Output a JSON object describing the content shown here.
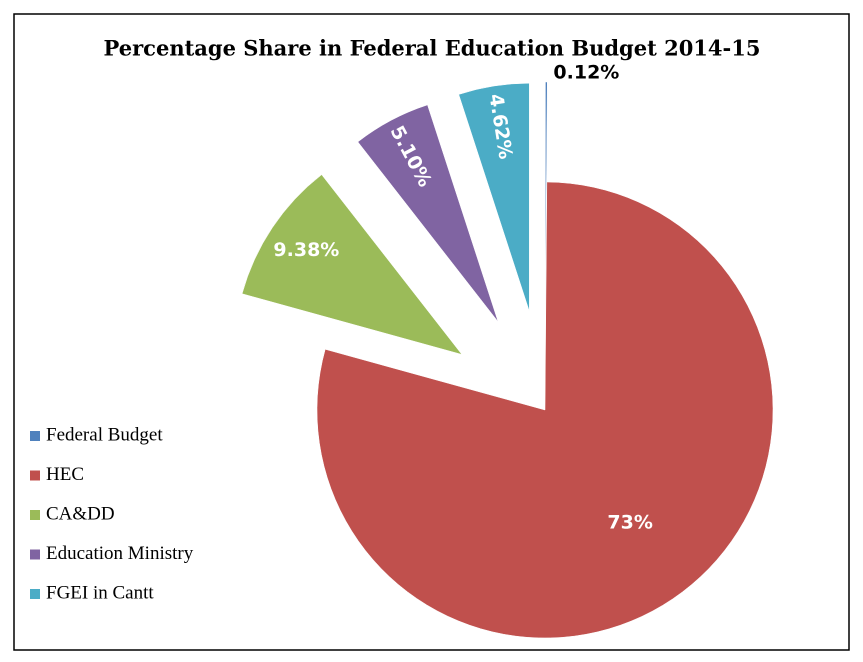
{
  "chart_data": {
    "type": "pie",
    "title": "Percentage Share in Federal Education Budget 2014-15",
    "categories": [
      "Federal Budget",
      "HEC",
      "CA&DD",
      "Education Ministry",
      "FGEI in Cantt"
    ],
    "values": [
      0.12,
      73,
      9.38,
      5.1,
      4.62
    ],
    "value_labels": [
      "0.12%",
      "73%",
      "9.38%",
      "5.10%",
      "4.62%"
    ],
    "colors": [
      "#4f81bd",
      "#c0504d",
      "#9bbb59",
      "#8064a2",
      "#4bacc6"
    ],
    "legend": "left"
  }
}
